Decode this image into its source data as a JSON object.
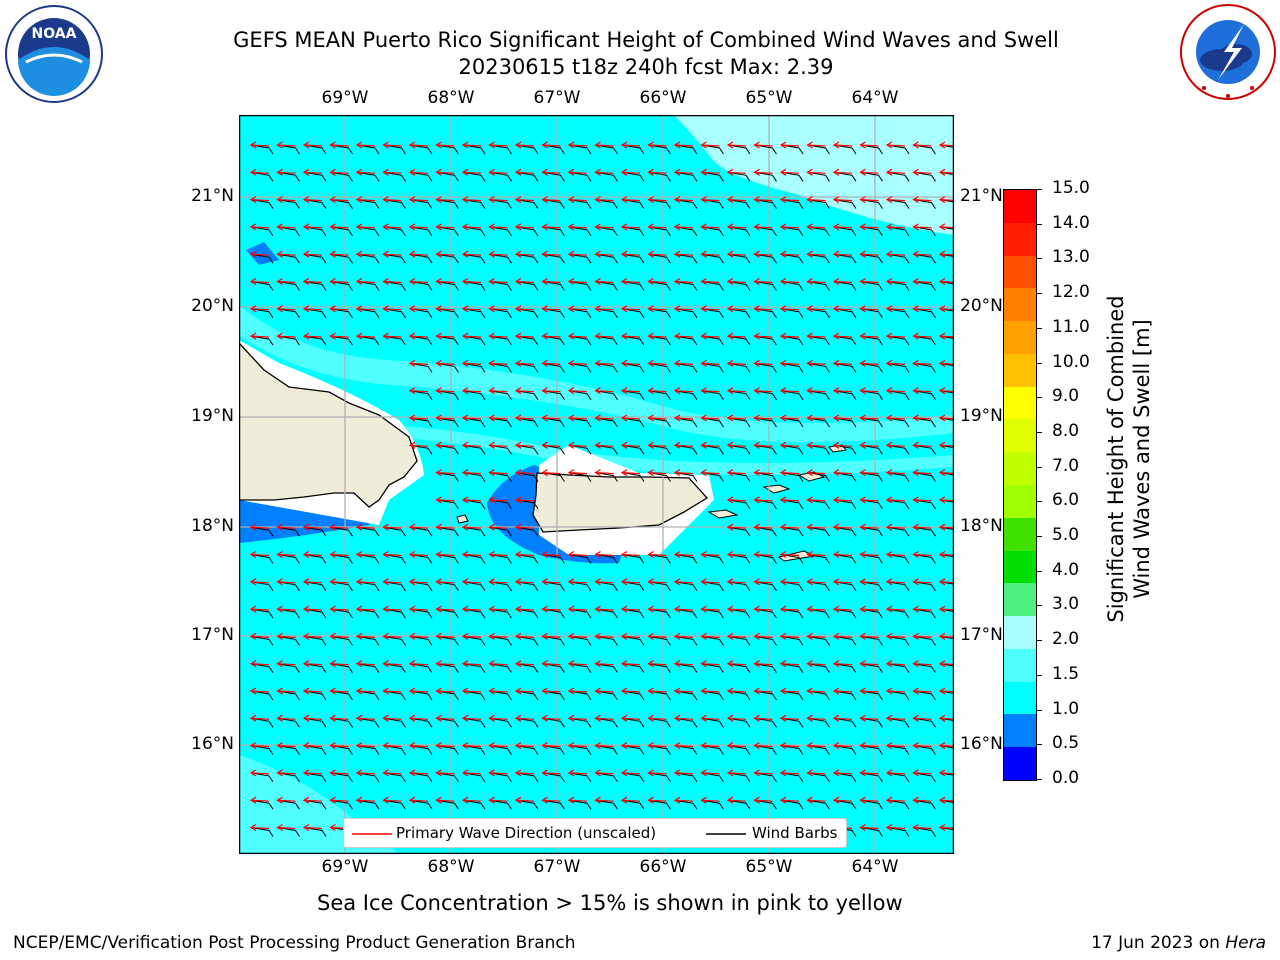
{
  "header": {
    "title_line1": "GEFS MEAN Puerto Rico Significant Height of Combined Wind Waves and Swell",
    "title_line2": "20230615 t18z 240h fcst   Max: 2.39"
  },
  "logos": {
    "left": {
      "text": "NOAA",
      "ring_text": "NATIONAL OCEANIC AND ATMOSPHERIC ADMINISTRATION · U.S. DEPARTMENT OF COMMERCE",
      "icon": "noaa-logo"
    },
    "right": {
      "text": "NATIONAL WEATHER SERVICE",
      "icon": "nws-logo"
    }
  },
  "map": {
    "lon_labels": [
      "69°W",
      "68°W",
      "67°W",
      "66°W",
      "65°W",
      "64°W"
    ],
    "lat_labels": [
      "21°N",
      "20°N",
      "19°N",
      "18°N",
      "17°N",
      "16°N"
    ],
    "colors": {
      "ocean": "#00ffff",
      "light": "#aaffff",
      "blue": "#0080ff",
      "land": "#efedda",
      "arrow": "#ff0000",
      "barb": "#000000",
      "grid": "#b0b0b0"
    }
  },
  "legend": {
    "wave_direction": "Primary Wave Direction (unscaled)",
    "wind_barbs": "Wind Barbs"
  },
  "colorbar": {
    "label_line1": "Significant Height of Combined",
    "label_line2": "Wind Waves and Swell [m]",
    "ticks": [
      "15.0",
      "14.0",
      "13.0",
      "12.0",
      "11.0",
      "10.0",
      "9.0",
      "8.0",
      "7.0",
      "6.0",
      "5.0",
      "4.0",
      "3.0",
      "2.0",
      "1.5",
      "1.0",
      "0.5",
      "0.0"
    ],
    "colors_top_to_bottom": [
      "#ff0000",
      "#ff2000",
      "#ff5000",
      "#ff8000",
      "#ffa000",
      "#ffc000",
      "#ffff00",
      "#e0ff00",
      "#c0ff00",
      "#a0ff00",
      "#40e000",
      "#00e000",
      "#50f080",
      "#aaffff",
      "#50ffff",
      "#00ffff",
      "#0080ff",
      "#0000ff"
    ]
  },
  "notes": {
    "sea_ice": "Sea Ice Concentration > 15% is shown in pink to yellow"
  },
  "footer": {
    "left": "NCEP/EMC/Verification Post Processing Product Generation Branch",
    "right_prefix": "17 Jun 2023 on ",
    "right_host": "Hera"
  }
}
